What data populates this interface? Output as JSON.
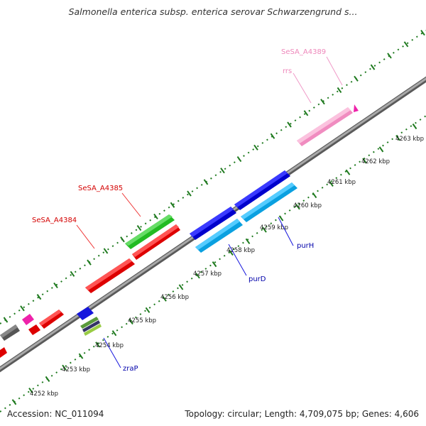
{
  "title": "Salmonella enterica subsp. enterica serovar Schwarzengrund s...",
  "footer": {
    "accession": "Accession: NC_011094",
    "summary": "Topology: circular; Length: 4,709,075 bp; Genes: 4,606"
  },
  "colors": {
    "backbone": "#8a8a8a",
    "tick": "#1f7a1f",
    "label_red": "#d40000",
    "label_blue": "#0000aa",
    "label_pink": "#f09ac8",
    "gene_red": "#ee1111",
    "gene_green": "#33cc33",
    "gene_blue": "#1515dd",
    "gene_cyan": "#1eb4f0",
    "gene_pink": "#f7a6cf",
    "gene_magenta": "#ee22aa",
    "gene_gray": "#666666"
  },
  "scale_labels": [
    "4252 kbp",
    "4253 kbp",
    "4254 kbp",
    "4255 kbp",
    "4256 kbp",
    "4257 kbp",
    "4258 kbp",
    "4259 kbp",
    "4260 kbp",
    "4261 kbp",
    "4262 kbp",
    "4263 kbp"
  ],
  "gene_labels": {
    "sesa_a4385": "SeSA_A4385",
    "sesa_a4384": "SeSA_A4384",
    "sesa_a4389": "SeSA_A4389",
    "rrs": "rrs",
    "purH": "purH",
    "purD": "purD",
    "zraP": "zraP"
  }
}
